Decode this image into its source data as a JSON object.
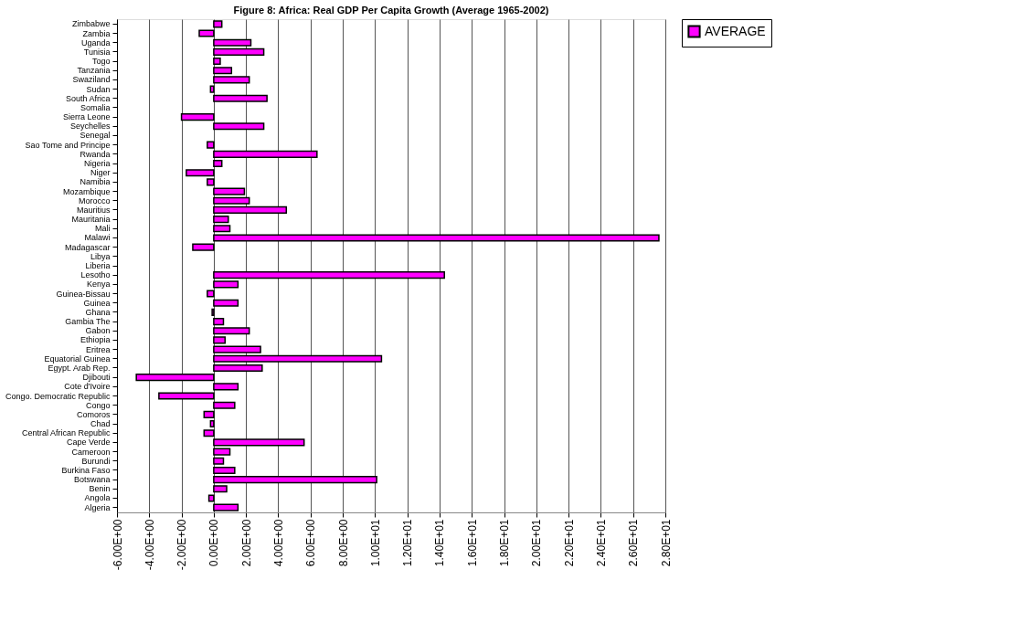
{
  "chart_data": {
    "type": "bar",
    "orientation": "horizontal",
    "title": "Figure 8: Africa: Real GDP Per Capita Growth (Average 1965-2002)",
    "categories": [
      "Zimbabwe",
      "Zambia",
      "Uganda",
      "Tunisia",
      "Togo",
      "Tanzania",
      "Swaziland",
      "Sudan",
      "South Africa",
      "Somalia",
      "Sierra Leone",
      "Seychelles",
      "Senegal",
      "Sao Tome and Principe",
      "Rwanda",
      "Nigeria",
      "Niger",
      "Namibia",
      "Mozambique",
      "Morocco",
      "Mauritius",
      "Mauritania",
      "Mali",
      "Malawi",
      "Madagascar",
      "Libya",
      "Liberia",
      "Lesotho",
      "Kenya",
      "Guinea-Bissau",
      "Guinea",
      "Ghana",
      "Gambia The",
      "Gabon",
      "Ethiopia",
      "Eritrea",
      "Equatorial Guinea",
      "Egypt. Arab Rep.",
      "Djibouti",
      "Cote d'Ivoire",
      "Congo. Democratic Republic",
      "Congo",
      "Comoros",
      "Chad",
      "Central African Republic",
      "Cape Verde",
      "Cameroon",
      "Burundi",
      "Burkina Faso",
      "Botswana",
      "Benin",
      "Angola",
      "Algeria"
    ],
    "series": [
      {
        "name": "AVERAGE",
        "color": "#ff00ff",
        "values": [
          0.5,
          -0.9,
          2.3,
          3.1,
          0.4,
          1.1,
          2.2,
          -0.2,
          3.3,
          null,
          -2.0,
          3.1,
          null,
          -0.4,
          6.4,
          0.5,
          -1.7,
          -0.4,
          1.9,
          2.2,
          4.5,
          0.9,
          1.0,
          27.6,
          -1.3,
          null,
          null,
          14.3,
          1.5,
          -0.4,
          1.5,
          -0.1,
          0.6,
          2.2,
          0.7,
          2.9,
          10.4,
          3.0,
          -4.8,
          1.5,
          -3.4,
          1.3,
          -0.6,
          -0.2,
          -0.6,
          5.6,
          1.0,
          0.6,
          1.3,
          10.1,
          0.8,
          -0.3,
          1.5
        ]
      }
    ],
    "xlim": [
      -6,
      28
    ],
    "xticks": [
      {
        "value": -6,
        "label": "-6.00E+00"
      },
      {
        "value": -4,
        "label": "-4.00E+00"
      },
      {
        "value": -2,
        "label": "-2.00E+00"
      },
      {
        "value": 0,
        "label": "0.00E+00"
      },
      {
        "value": 2,
        "label": "2.00E+00"
      },
      {
        "value": 4,
        "label": "4.00E+00"
      },
      {
        "value": 6,
        "label": "6.00E+00"
      },
      {
        "value": 8,
        "label": "8.00E+00"
      },
      {
        "value": 10,
        "label": "1.00E+01"
      },
      {
        "value": 12,
        "label": "1.20E+01"
      },
      {
        "value": 14,
        "label": "1.40E+01"
      },
      {
        "value": 16,
        "label": "1.60E+01"
      },
      {
        "value": 18,
        "label": "1.80E+01"
      },
      {
        "value": 20,
        "label": "2.00E+01"
      },
      {
        "value": 22,
        "label": "2.20E+01"
      },
      {
        "value": 24,
        "label": "2.40E+01"
      },
      {
        "value": 26,
        "label": "2.60E+01"
      },
      {
        "value": 28,
        "label": "2.80E+01"
      }
    ],
    "grid": "x",
    "legend": "right"
  }
}
